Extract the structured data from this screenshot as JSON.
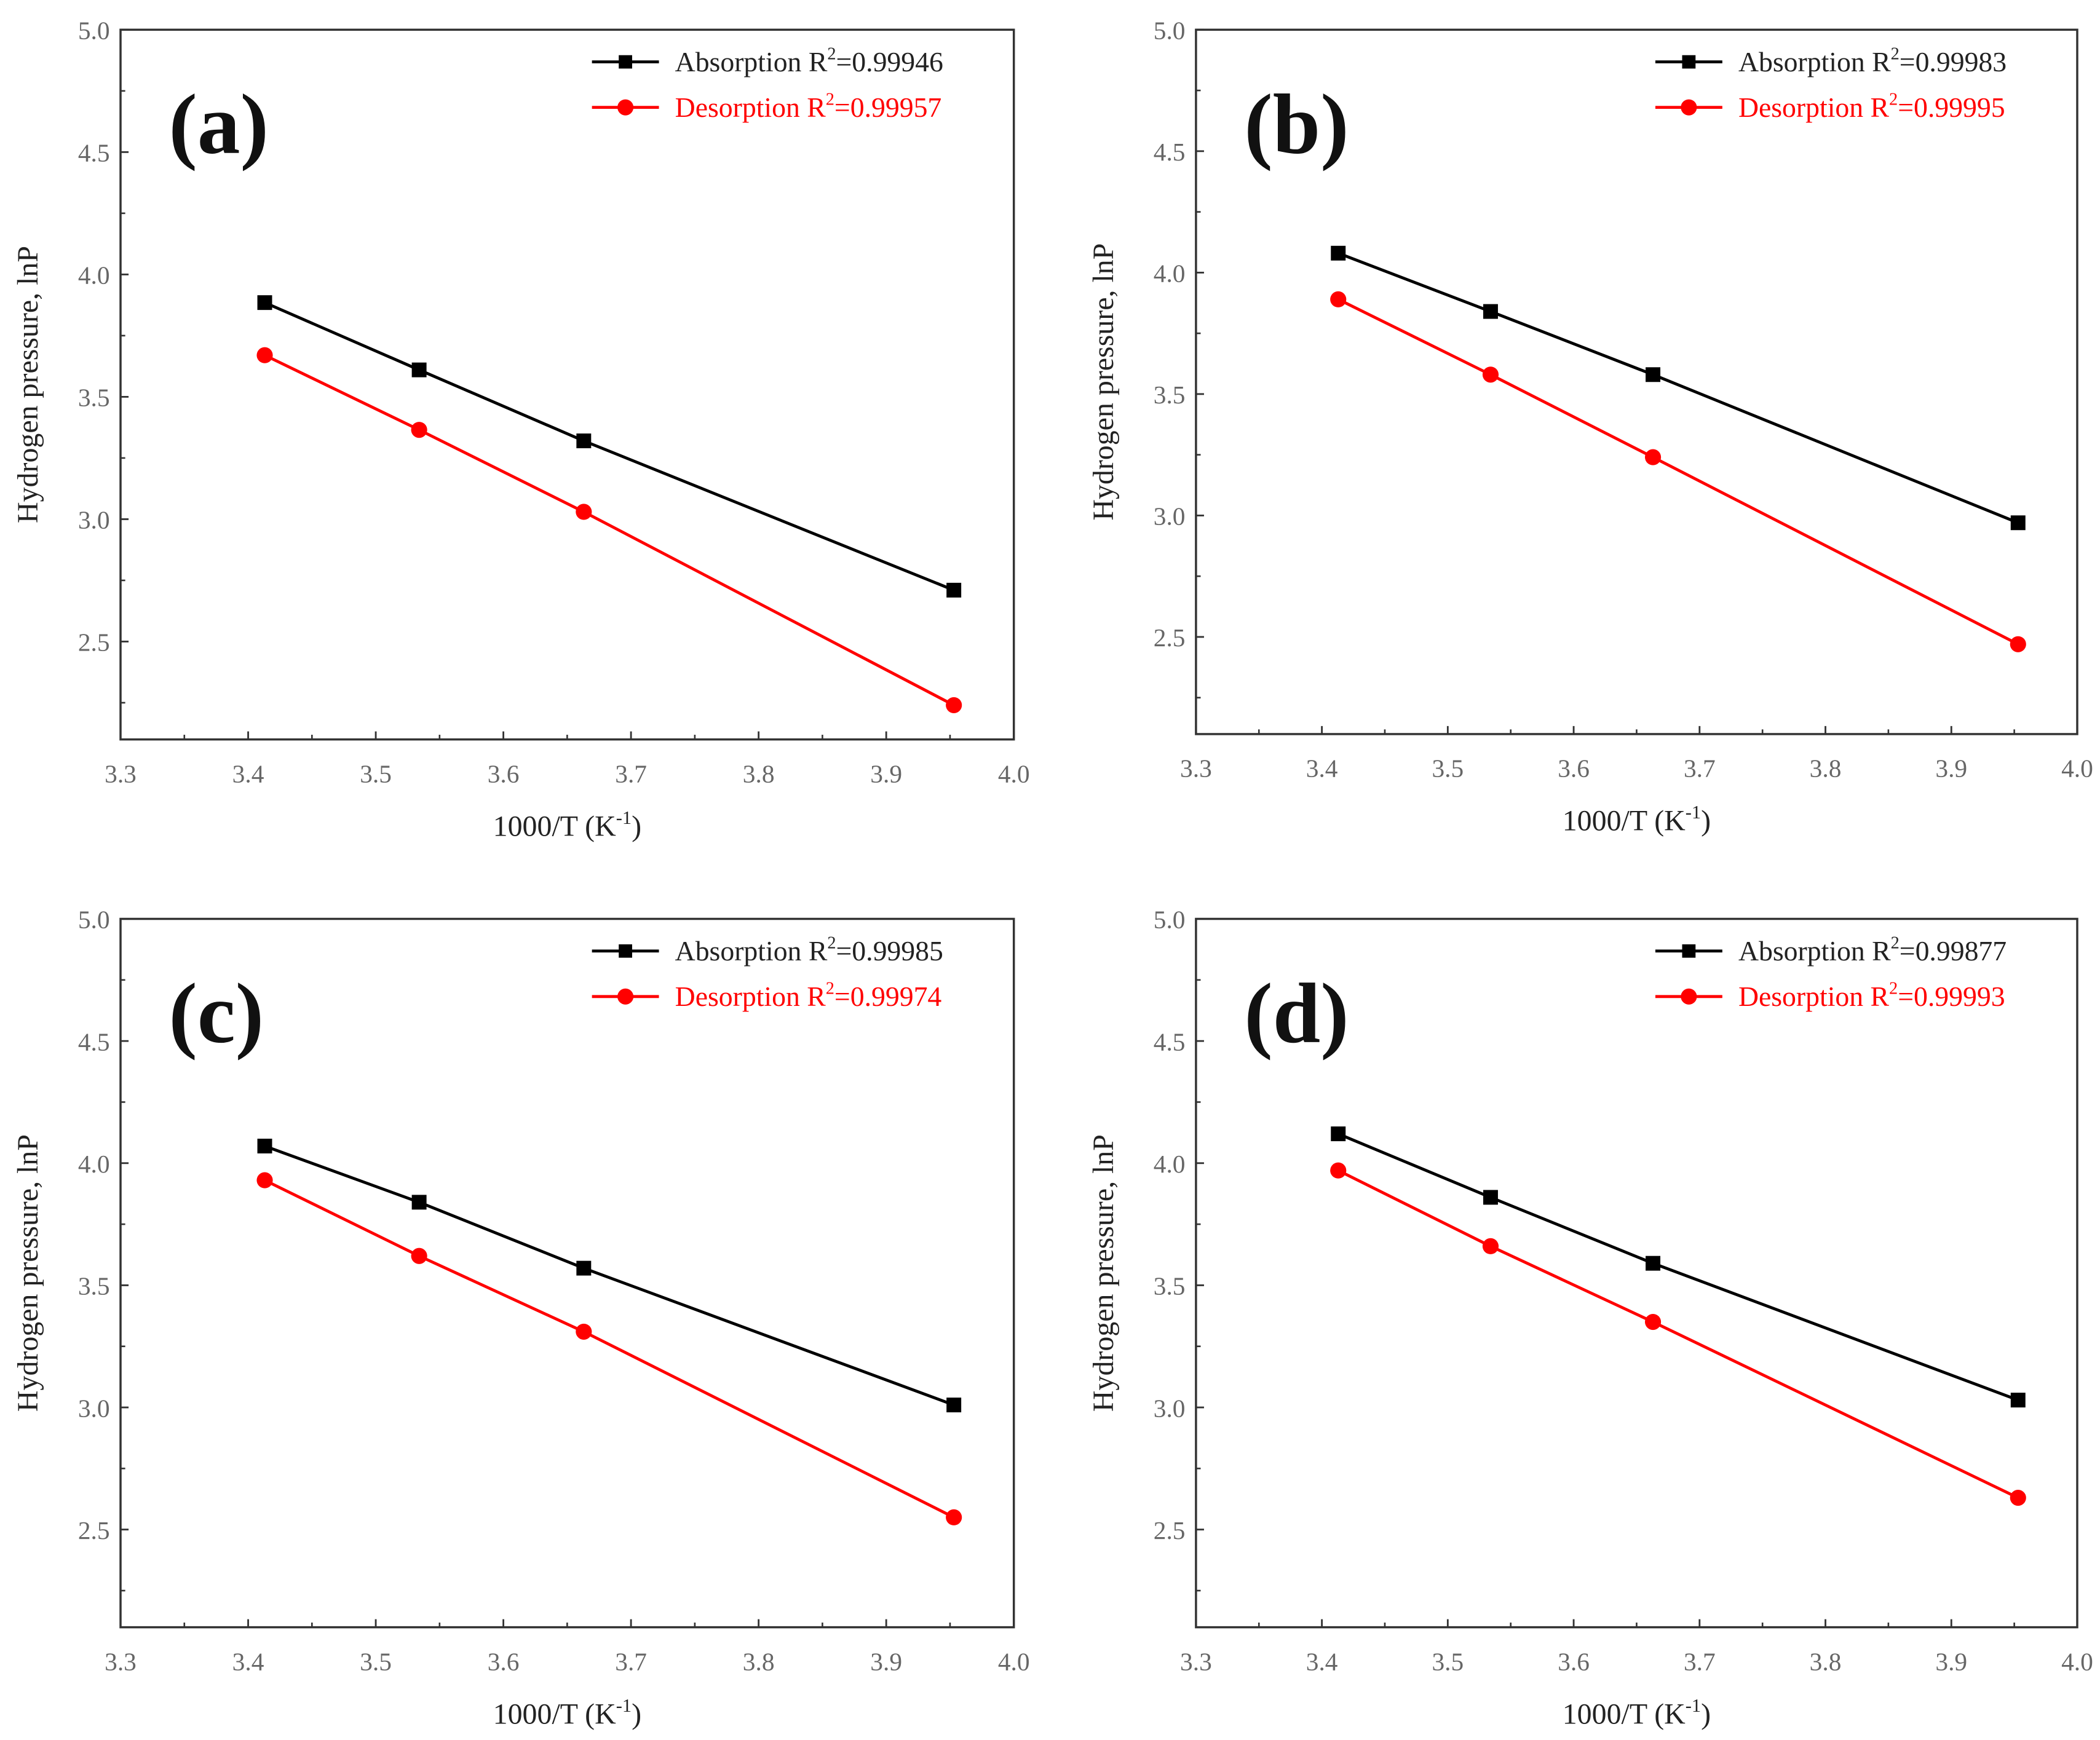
{
  "chart_data": [
    {
      "type": "line",
      "panel_label": "(a)",
      "xlabel": "1000/T (K",
      "xlabel_sup": "-1",
      "xlabel_end": ")",
      "ylabel": "Hydrogen pressure, lnP",
      "xlim": [
        3.3,
        4.0
      ],
      "ylim": [
        2.1,
        5.0
      ],
      "xticks": [
        "3.3",
        "3.4",
        "3.5",
        "3.6",
        "3.7",
        "3.8",
        "3.9",
        "4.0"
      ],
      "yticks": [
        "2.5",
        "3.0",
        "3.5",
        "4.0",
        "4.5",
        "5.0"
      ],
      "legend_position": "top-right",
      "x": [
        3.413,
        3.534,
        3.663,
        3.953
      ],
      "series": [
        {
          "name": "Absorption",
          "r2": "0.99946",
          "color": "#000000",
          "marker": "square",
          "values": [
            3.885,
            3.61,
            3.32,
            2.71
          ]
        },
        {
          "name": "Desorption",
          "r2": "0.99957",
          "color": "#ff0000",
          "marker": "circle",
          "values": [
            3.67,
            3.365,
            3.03,
            2.24
          ]
        }
      ]
    },
    {
      "type": "line",
      "panel_label": "(b)",
      "xlabel": "1000/T (K",
      "xlabel_sup": "-1",
      "xlabel_end": ")",
      "ylabel": "Hydrogen pressure, lnP",
      "xlim": [
        3.3,
        4.0
      ],
      "ylim": [
        2.1,
        5.0
      ],
      "xticks": [
        "3.3",
        "3.4",
        "3.5",
        "3.6",
        "3.7",
        "3.8",
        "3.9",
        "4.0"
      ],
      "yticks": [
        "2.5",
        "3.0",
        "3.5",
        "4.0",
        "4.5",
        "5.0"
      ],
      "legend_position": "top-right",
      "x": [
        3.413,
        3.534,
        3.663,
        3.953
      ],
      "series": [
        {
          "name": "Absorption",
          "r2": "0.99983",
          "color": "#000000",
          "marker": "square",
          "values": [
            4.08,
            3.84,
            3.58,
            2.97
          ]
        },
        {
          "name": "Desorption",
          "r2": "0.99995",
          "color": "#ff0000",
          "marker": "circle",
          "values": [
            3.89,
            3.58,
            3.24,
            2.47
          ]
        }
      ]
    },
    {
      "type": "line",
      "panel_label": "(c)",
      "xlabel": "1000/T (K",
      "xlabel_sup": "-1",
      "xlabel_end": ")",
      "ylabel": "Hydrogen pressure, lnP",
      "xlim": [
        3.3,
        4.0
      ],
      "ylim": [
        2.1,
        5.0
      ],
      "xticks": [
        "3.3",
        "3.4",
        "3.5",
        "3.6",
        "3.7",
        "3.8",
        "3.9",
        "4.0"
      ],
      "yticks": [
        "2.5",
        "3.0",
        "3.5",
        "4.0",
        "4.5",
        "5.0"
      ],
      "legend_position": "top-right",
      "x": [
        3.413,
        3.534,
        3.663,
        3.953
      ],
      "series": [
        {
          "name": "Absorption",
          "r2": "0.99985",
          "color": "#000000",
          "marker": "square",
          "values": [
            4.07,
            3.84,
            3.57,
            3.01
          ]
        },
        {
          "name": "Desorption",
          "r2": "0.99974",
          "color": "#ff0000",
          "marker": "circle",
          "values": [
            3.93,
            3.62,
            3.31,
            2.55
          ]
        }
      ]
    },
    {
      "type": "line",
      "panel_label": "(d)",
      "xlabel": "1000/T (K",
      "xlabel_sup": "-1",
      "xlabel_end": ")",
      "ylabel": "Hydrogen pressure, lnP",
      "xlim": [
        3.3,
        4.0
      ],
      "ylim": [
        2.1,
        5.0
      ],
      "xticks": [
        "3.3",
        "3.4",
        "3.5",
        "3.6",
        "3.7",
        "3.8",
        "3.9",
        "4.0"
      ],
      "yticks": [
        "2.5",
        "3.0",
        "3.5",
        "4.0",
        "4.5",
        "5.0"
      ],
      "legend_position": "top-right",
      "x": [
        3.413,
        3.534,
        3.663,
        3.953
      ],
      "series": [
        {
          "name": "Absorption",
          "r2": "0.99877",
          "color": "#000000",
          "marker": "square",
          "values": [
            4.12,
            3.86,
            3.59,
            3.03
          ]
        },
        {
          "name": "Desorption",
          "r2": "0.99993",
          "color": "#ff0000",
          "marker": "circle",
          "values": [
            3.97,
            3.66,
            3.35,
            2.63
          ]
        }
      ]
    }
  ]
}
